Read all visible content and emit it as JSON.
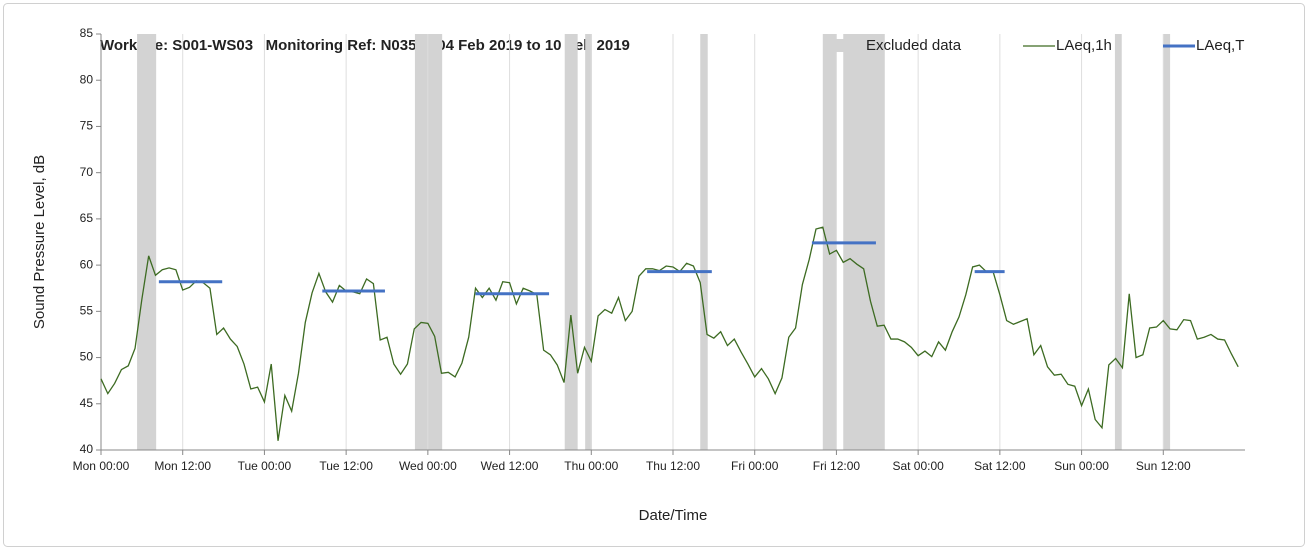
{
  "chart_data": {
    "type": "line",
    "title": "Worksite: S001-WS03   Monitoring Ref: N035     04 Feb 2019 to 10 Feb 2019",
    "xlabel": "Date/Time",
    "ylabel": "Sound Pressure Level, dB",
    "x": [
      0,
      1,
      2,
      3,
      4,
      5,
      6,
      7,
      8,
      9,
      10,
      11,
      12,
      13,
      14,
      15,
      16,
      17,
      18,
      19,
      20,
      21,
      22,
      23,
      24,
      25,
      26,
      27,
      28,
      29,
      30,
      31,
      32,
      33,
      34,
      35,
      36,
      37,
      38,
      39,
      40,
      41,
      42,
      43,
      44,
      45,
      46,
      47,
      48,
      49,
      50,
      51,
      52,
      53,
      54,
      55,
      56,
      57,
      58,
      59,
      60,
      61,
      62,
      63,
      64,
      65,
      66,
      67,
      68,
      69,
      70,
      71,
      72,
      73,
      74,
      75,
      76,
      77,
      78,
      79,
      80,
      81,
      82,
      83,
      84,
      85,
      86,
      87,
      88,
      89,
      90,
      91,
      92,
      93,
      94,
      95,
      96,
      97,
      98,
      99,
      100,
      101,
      102,
      103,
      104,
      105,
      106,
      107,
      108,
      109,
      110,
      111,
      112,
      113,
      114,
      115,
      116,
      117,
      118,
      119,
      120,
      121,
      122,
      123,
      124,
      125,
      126,
      127,
      128,
      129,
      130,
      131,
      132,
      133,
      134,
      135,
      136,
      137,
      138,
      139,
      140,
      141,
      142,
      143,
      144,
      145,
      146,
      147,
      148,
      149,
      150,
      151,
      152,
      153,
      154,
      155,
      156,
      157,
      158,
      159,
      160,
      161,
      162,
      163,
      164,
      165,
      166,
      167
    ],
    "series": [
      {
        "name": "LAeq,1h",
        "color": "#3d6b22",
        "values": [
          47.7,
          46.1,
          47.2,
          48.7,
          49.1,
          51,
          56.3,
          61,
          58.9,
          59.5,
          59.7,
          59.5,
          57.3,
          57.6,
          58.3,
          58.1,
          57.5,
          52.5,
          53.2,
          52,
          51.2,
          49.3,
          46.6,
          46.8,
          45.2,
          49.3,
          41,
          45.9,
          44.2,
          48.3,
          53.8,
          57,
          59.1,
          57.1,
          56,
          57.8,
          57.2,
          57.1,
          56.9,
          58.5,
          58,
          51.9,
          52.2,
          49.3,
          48.2,
          49.3,
          53.1,
          53.8,
          53.7,
          52.3,
          48.3,
          48.4,
          47.9,
          49.4,
          52.2,
          57.5,
          56.5,
          57.5,
          56.2,
          58.2,
          58.1,
          55.8,
          57.5,
          57.2,
          56.8,
          50.8,
          50.3,
          49.2,
          47.3,
          54.6,
          48.3,
          51.1,
          49.6,
          54.5,
          55.2,
          54.8,
          56.5,
          54,
          55,
          58.8,
          59.6,
          59.6,
          59.4,
          59.9,
          59.8,
          59.3,
          60.2,
          59.9,
          58.1,
          52.5,
          52.1,
          52.8,
          51.3,
          52,
          50.6,
          49.3,
          47.9,
          48.8,
          47.7,
          46.1,
          47.8,
          52.2,
          53.2,
          57.9,
          60.6,
          63.9,
          64.1,
          61.2,
          61.6,
          60.3,
          60.7,
          60.1,
          59.6,
          56.1,
          53.4,
          53.5,
          52,
          52,
          51.7,
          51.1,
          50.2,
          50.7,
          50.1,
          51.7,
          50.8,
          52.8,
          54.4,
          56.8,
          59.8,
          60,
          59.3,
          59.3,
          56.8,
          54,
          53.6,
          53.9,
          54.2,
          50.3,
          51.3,
          49,
          48.1,
          48.2,
          47.1,
          46.9,
          44.8,
          46.6,
          43.3,
          42.4,
          49.2,
          49.9,
          48.9,
          56.9,
          50,
          50.3,
          53.2,
          53.3,
          54,
          53.1,
          53,
          54.1,
          54,
          52,
          52.2,
          52.5,
          52,
          51.9,
          50.4,
          49
        ]
      },
      {
        "name": "LAeq,T",
        "color": "#4472c4",
        "values": [
          58.2,
          57.2,
          56.9,
          59.3,
          62.4,
          59.3
        ],
        "x": [
          [
            8.5,
            17.8
          ],
          [
            32.5,
            41.7
          ],
          [
            55,
            65.8
          ],
          [
            80.2,
            89.7
          ],
          [
            104.4,
            113.8
          ],
          [
            128.3,
            132.7
          ]
        ]
      }
    ],
    "excluded": {
      "name": "Excluded data",
      "color": "#d3d3d3",
      "ranges": [
        [
          5.3,
          8.1
        ],
        [
          46.1,
          50.1
        ],
        [
          68.1,
          70
        ],
        [
          71.1,
          72.1
        ],
        [
          88,
          89.1
        ],
        [
          106,
          108
        ],
        [
          109,
          115.1
        ],
        [
          148.9,
          149.9
        ],
        [
          156,
          157
        ]
      ]
    },
    "xlim": [
      0,
      168
    ],
    "xticks": [
      {
        "value": 0,
        "label": "Mon 00:00"
      },
      {
        "value": 12,
        "label": "Mon 12:00"
      },
      {
        "value": 24,
        "label": "Tue 00:00"
      },
      {
        "value": 36,
        "label": "Tue 12:00"
      },
      {
        "value": 48,
        "label": "Wed 00:00"
      },
      {
        "value": 60,
        "label": "Wed 12:00"
      },
      {
        "value": 72,
        "label": "Thu 00:00"
      },
      {
        "value": 84,
        "label": "Thu 12:00"
      },
      {
        "value": 96,
        "label": "Fri 00:00"
      },
      {
        "value": 108,
        "label": "Fri 12:00"
      },
      {
        "value": 120,
        "label": "Sat 00:00"
      },
      {
        "value": 132,
        "label": "Sat 12:00"
      },
      {
        "value": 144,
        "label": "Sun 00:00"
      },
      {
        "value": 156,
        "label": "Sun 12:00"
      }
    ],
    "ylim": [
      40,
      85
    ],
    "yticks": [
      40,
      45,
      50,
      55,
      60,
      65,
      70,
      75,
      80,
      85
    ],
    "grid": "x"
  }
}
